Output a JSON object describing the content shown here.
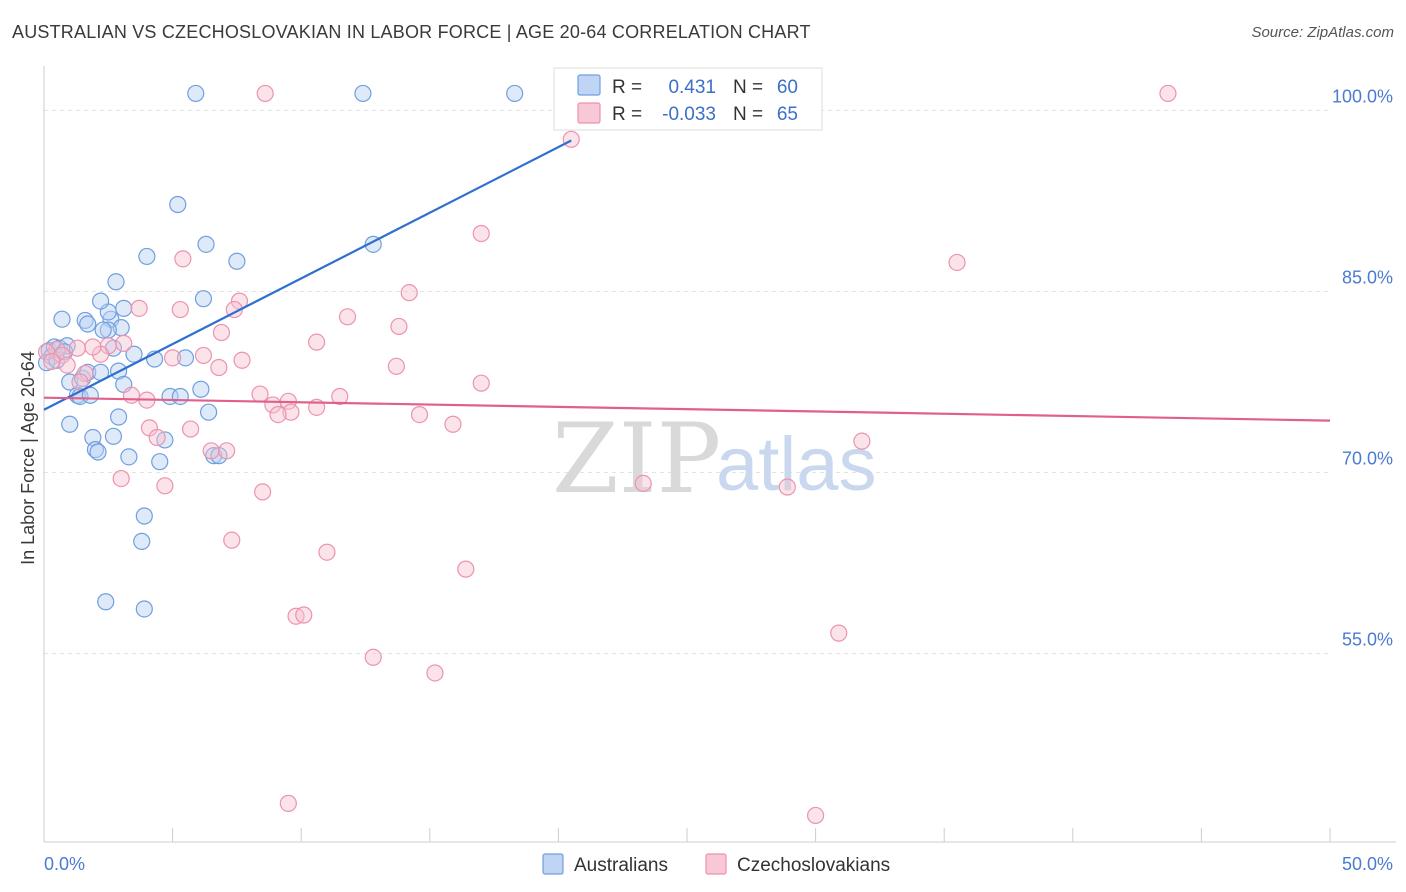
{
  "chart_data": {
    "type": "scatter",
    "title": "AUSTRALIAN VS CZECHOSLOVAKIAN IN LABOR FORCE | AGE 20-64 CORRELATION CHART",
    "source": "Source: ZipAtlas.com",
    "xlabel": "",
    "ylabel": "In Labor Force | Age 20-64",
    "xlim": [
      0,
      50
    ],
    "ylim": [
      39.4,
      104.5
    ],
    "x_tick_labels": [
      {
        "value": 0,
        "label": "0.0%"
      },
      {
        "value": 50,
        "label": "50.0%"
      }
    ],
    "y_tick_labels": [
      {
        "value": 55,
        "label": "55.0%"
      },
      {
        "value": 70,
        "label": "70.0%"
      },
      {
        "value": 85,
        "label": "85.0%"
      },
      {
        "value": 100,
        "label": "100.0%"
      }
    ],
    "watermark": {
      "part1": "ZIP",
      "part2": "atlas"
    },
    "legend": {
      "r_label": "R =",
      "n_label": "N =",
      "entries": [
        {
          "name": "Australians",
          "r": "0.431",
          "n": "60"
        },
        {
          "name": "Czechoslovakians",
          "r": "-0.033",
          "n": "65"
        }
      ]
    },
    "series": [
      {
        "name": "Australians",
        "color": "#6f9fe0",
        "fill": "#b9d0f2",
        "line_color": "#2f6fcf",
        "trend": {
          "x0": 0,
          "y0": 75.2,
          "x1": 20.5,
          "y1": 97.5
        },
        "points": [
          [
            5.9,
            101.4
          ],
          [
            12.4,
            101.4
          ],
          [
            18.3,
            101.4
          ],
          [
            0.2,
            80.1
          ],
          [
            0.4,
            80.4
          ],
          [
            0.6,
            80.3
          ],
          [
            0.3,
            79.6
          ],
          [
            0.1,
            79.1
          ],
          [
            0.5,
            79.3
          ],
          [
            0.9,
            80.5
          ],
          [
            1.0,
            77.5
          ],
          [
            1.3,
            76.4
          ],
          [
            1.5,
            77.8
          ],
          [
            1.7,
            78.3
          ],
          [
            0.7,
            82.7
          ],
          [
            1.6,
            82.6
          ],
          [
            1.7,
            82.3
          ],
          [
            2.6,
            82.7
          ],
          [
            2.5,
            83.3
          ],
          [
            3.0,
            82.0
          ],
          [
            2.5,
            81.8
          ],
          [
            3.1,
            83.6
          ],
          [
            2.7,
            80.3
          ],
          [
            2.2,
            84.2
          ],
          [
            2.8,
            85.8
          ],
          [
            4.0,
            87.9
          ],
          [
            5.2,
            92.2
          ],
          [
            6.3,
            88.9
          ],
          [
            7.5,
            87.5
          ],
          [
            12.8,
            88.9
          ],
          [
            6.2,
            84.4
          ],
          [
            3.5,
            79.8
          ],
          [
            4.3,
            79.4
          ],
          [
            5.5,
            79.5
          ],
          [
            2.2,
            78.3
          ],
          [
            2.9,
            78.4
          ],
          [
            3.1,
            77.3
          ],
          [
            4.9,
            76.3
          ],
          [
            5.3,
            76.3
          ],
          [
            6.1,
            76.9
          ],
          [
            6.4,
            75.0
          ],
          [
            2.9,
            74.6
          ],
          [
            1.0,
            74.0
          ],
          [
            1.9,
            72.9
          ],
          [
            2.7,
            73.0
          ],
          [
            4.7,
            72.7
          ],
          [
            2.0,
            71.9
          ],
          [
            2.1,
            71.7
          ],
          [
            3.3,
            71.3
          ],
          [
            4.5,
            70.9
          ],
          [
            6.6,
            71.4
          ],
          [
            6.8,
            71.4
          ],
          [
            3.9,
            66.4
          ],
          [
            3.8,
            64.3
          ],
          [
            2.4,
            59.3
          ],
          [
            3.9,
            58.7
          ],
          [
            1.4,
            76.3
          ],
          [
            1.8,
            76.4
          ],
          [
            0.8,
            80.0
          ],
          [
            2.3,
            81.8
          ]
        ]
      },
      {
        "name": "Czechoslovakians",
        "color": "#ec93ad",
        "fill": "#f7c2d1",
        "line_color": "#e0608b",
        "trend": {
          "x0": 0,
          "y0": 76.2,
          "x1": 50,
          "y1": 74.3
        },
        "points": [
          [
            8.6,
            101.4
          ],
          [
            43.7,
            101.4
          ],
          [
            20.5,
            97.6
          ],
          [
            17.0,
            89.8
          ],
          [
            35.5,
            87.4
          ],
          [
            5.4,
            87.7
          ],
          [
            14.2,
            84.9
          ],
          [
            7.6,
            84.2
          ],
          [
            7.4,
            83.5
          ],
          [
            3.7,
            83.6
          ],
          [
            5.3,
            83.5
          ],
          [
            11.8,
            82.9
          ],
          [
            13.8,
            82.1
          ],
          [
            6.9,
            81.6
          ],
          [
            10.6,
            80.8
          ],
          [
            3.1,
            80.7
          ],
          [
            2.5,
            80.5
          ],
          [
            1.3,
            80.3
          ],
          [
            0.5,
            80.2
          ],
          [
            0.1,
            80.0
          ],
          [
            0.7,
            79.7
          ],
          [
            0.3,
            79.2
          ],
          [
            2.2,
            79.8
          ],
          [
            6.2,
            79.7
          ],
          [
            5.0,
            79.5
          ],
          [
            7.7,
            79.3
          ],
          [
            13.7,
            78.8
          ],
          [
            0.9,
            78.9
          ],
          [
            1.6,
            78.2
          ],
          [
            1.4,
            77.5
          ],
          [
            6.8,
            78.7
          ],
          [
            17.0,
            77.4
          ],
          [
            3.4,
            76.4
          ],
          [
            4.0,
            76.0
          ],
          [
            8.4,
            76.5
          ],
          [
            11.5,
            76.3
          ],
          [
            9.5,
            75.9
          ],
          [
            8.9,
            75.6
          ],
          [
            10.6,
            75.4
          ],
          [
            9.6,
            75.0
          ],
          [
            9.1,
            74.8
          ],
          [
            14.6,
            74.8
          ],
          [
            15.9,
            74.0
          ],
          [
            4.1,
            73.7
          ],
          [
            4.4,
            72.9
          ],
          [
            5.7,
            73.6
          ],
          [
            31.8,
            72.6
          ],
          [
            6.5,
            71.8
          ],
          [
            7.1,
            71.8
          ],
          [
            3.0,
            69.5
          ],
          [
            4.7,
            68.9
          ],
          [
            8.5,
            68.4
          ],
          [
            23.3,
            69.1
          ],
          [
            28.9,
            68.8
          ],
          [
            7.3,
            64.4
          ],
          [
            11.0,
            63.4
          ],
          [
            16.4,
            62.0
          ],
          [
            9.8,
            58.1
          ],
          [
            10.1,
            58.2
          ],
          [
            30.9,
            56.7
          ],
          [
            12.8,
            54.7
          ],
          [
            15.2,
            53.4
          ],
          [
            9.5,
            42.6
          ],
          [
            30.0,
            41.6
          ],
          [
            1.9,
            80.4
          ]
        ]
      }
    ]
  }
}
